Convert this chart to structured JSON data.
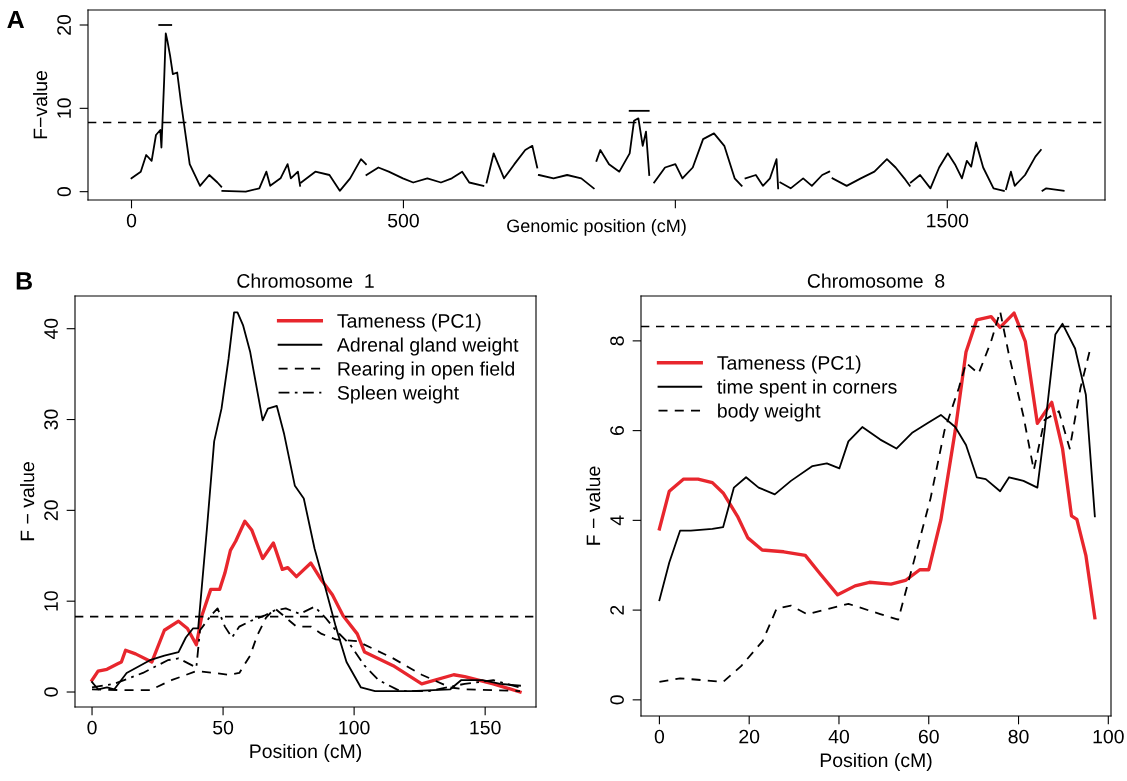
{
  "chart_data": [
    {
      "type": "line",
      "ylabel": "F−value",
      "xlabel": "Genomic position (cM)",
      "xlim": [
        -80,
        1790
      ],
      "ylim": [
        -1,
        21.8
      ],
      "xticks": [
        0,
        500,
        {
          "value": 1000,
          "label": null
        },
        1500
      ],
      "yticks": [
        0,
        10,
        20
      ],
      "legend": false,
      "annotations": [
        "A"
      ],
      "ref_lines": [
        {
          "axis": "y",
          "value": 8.3,
          "line_style": "dashed",
          "color": "#000000"
        }
      ],
      "series": [
        {
          "color": "#000000",
          "line_style": "solid",
          "x": [
            0,
            17,
            27,
            37,
            45,
            53,
            55,
            60,
            63,
            66,
            71,
            76,
            84,
            91,
            107,
            126,
            143,
            158,
            165,
            null,
            167,
            210,
            235,
            248,
            255,
            274,
            287,
            293,
            306,
            310,
            null,
            312,
            338,
            364,
            383,
            402,
            422,
            431,
            null,
            432,
            454,
            473,
            499,
            518,
            544,
            569,
            589,
            608,
            621,
            647,
            null,
            653,
            666,
            685,
            704,
            724,
            737,
            746,
            null,
            749,
            776,
            801,
            827,
            850,
            null,
            855,
            862,
            878,
            897,
            916,
            924,
            932,
            940,
            946,
            952,
            null,
            961,
            981,
            1000,
            1013,
            1032,
            1051,
            1071,
            1090,
            1109,
            1122,
            null,
            1129,
            1148,
            1161,
            1174,
            1186,
            1189,
            null,
            1193,
            1212,
            1235,
            1251,
            1270,
            1283,
            null,
            1289,
            1315,
            1341,
            1366,
            1389,
            1405,
            1421,
            1431,
            null,
            1433,
            1450,
            1469,
            1485,
            1501,
            1514,
            1527,
            1536,
            1544,
            1553,
            1566,
            1585,
            1604,
            null,
            1608,
            1617,
            1624,
            1643,
            1662,
            1672,
            null,
            1675,
            1682,
            1714
          ],
          "values": [
            1.6,
            2.4,
            4.4,
            3.7,
            6.8,
            7.4,
            5.3,
            13.3,
            19,
            18.1,
            16.3,
            14.1,
            14.3,
            10.7,
            3.3,
            0.7,
            2,
            1.1,
            0.6,
            null,
            0.1,
            0,
            0.4,
            2.4,
            0.7,
            1.6,
            3.3,
            1.6,
            2.4,
            0.7,
            null,
            1.1,
            2.4,
            2,
            0.1,
            1.6,
            3.9,
            3.3,
            null,
            2,
            2.9,
            2.4,
            1.6,
            1.1,
            1.6,
            1.1,
            1.6,
            2.4,
            1.1,
            0.7,
            null,
            1.1,
            4.6,
            1.6,
            3.3,
            5,
            5.5,
            2.9,
            null,
            2,
            1.6,
            2,
            1.6,
            0.4,
            null,
            3.7,
            5,
            3.3,
            2.4,
            4.6,
            8.5,
            8.8,
            5.5,
            7.2,
            2,
            null,
            1.1,
            2.9,
            3.3,
            1.6,
            2.9,
            6.3,
            7,
            5.5,
            1.6,
            0.7,
            null,
            1.6,
            2,
            0.7,
            1.6,
            3.9,
            0.4,
            null,
            1.1,
            0.4,
            1.6,
            0.7,
            2,
            2.4,
            null,
            1.6,
            0.7,
            1.6,
            2.4,
            3.9,
            2.9,
            1.6,
            0.7,
            null,
            1.1,
            2,
            0.4,
            2.9,
            4.6,
            3.3,
            1.6,
            3.7,
            3,
            5.9,
            2.9,
            0.4,
            0.1,
            null,
            0.3,
            2.4,
            0.7,
            2,
            4.2,
            5,
            null,
            0.1,
            0.4,
            0.1
          ]
        },
        {
          "color": "#000000",
          "line_style": "solid",
          "x": [
            51,
            73
          ],
          "values": [
            20,
            20
          ]
        },
        {
          "color": "#000000",
          "line_style": "solid",
          "x": [
            916,
            951
          ],
          "values": [
            9.7,
            9.7
          ]
        }
      ]
    },
    {
      "type": "line",
      "title": "Chromosome  1",
      "ylabel": "F − value",
      "xlabel": "Position (cM)",
      "xlim": [
        -6.5,
        169.4
      ],
      "ylim": [
        -1.65,
        43.6
      ],
      "xticks": [
        0,
        50,
        100,
        150
      ],
      "yticks": [
        0,
        10,
        20,
        30,
        40
      ],
      "legend": "top right",
      "annotations": [
        "B"
      ],
      "ref_lines": [
        {
          "axis": "y",
          "value": 8.3,
          "line_style": "dashed",
          "color": "#000000"
        }
      ],
      "series": [
        {
          "name": "Tameness (PC1)",
          "color": "#e8262d",
          "line_style": "solid",
          "x": [
            0,
            2.3,
            5.7,
            9.8,
            11.2,
            12.8,
            16.6,
            22.8,
            27.6,
            33,
            36.4,
            39.8,
            41.9,
            45.3,
            48.7,
            50.7,
            52.8,
            54.8,
            58.3,
            61,
            65.1,
            69.2,
            72.6,
            74.7,
            78,
            83.5,
            87.6,
            91.7,
            95.8,
            101.2,
            104,
            114.9,
            125.8,
            138,
            142.2,
            153.1,
            163.3
          ],
          "values": [
            1.3,
            2.3,
            2.5,
            3.1,
            3.3,
            4.6,
            4.2,
            3.3,
            6.8,
            7.8,
            7,
            5.2,
            8.4,
            11.3,
            11.3,
            13.1,
            15.6,
            16.6,
            18.8,
            17.8,
            14.7,
            16.4,
            13.5,
            13.7,
            12.7,
            14.2,
            12.3,
            10.7,
            8.4,
            6.4,
            4.4,
            2.9,
            0.9,
            1.9,
            1.7,
            0.9,
            0
          ]
        },
        {
          "name": "Adrenal gland weight",
          "color": "#000000",
          "line_style": "solid",
          "x": [
            0,
            2.3,
            5.7,
            8.5,
            13.2,
            22.1,
            27.6,
            33,
            35.8,
            38.5,
            40.5,
            43.9,
            46.6,
            49.4,
            52.1,
            54.2,
            55.5,
            57.6,
            60.3,
            65.1,
            67.1,
            70.5,
            73.3,
            77.4,
            80.8,
            84.9,
            89,
            93,
            97.1,
            102.6,
            108,
            121.7,
            136.7,
            140.8,
            149,
            155.8,
            163.3
          ],
          "values": [
            1.1,
            0.3,
            0.5,
            0.3,
            2.1,
            3.5,
            4,
            4.4,
            6,
            7,
            7,
            18.2,
            27.6,
            31.2,
            36.7,
            41.8,
            41.8,
            40.4,
            37.5,
            29.9,
            31.2,
            31.5,
            28.4,
            22.7,
            21.3,
            15.8,
            11.5,
            7.2,
            3.3,
            0.5,
            0.1,
            0.1,
            0.3,
            1.3,
            1.3,
            0.9,
            0.7
          ]
        },
        {
          "name": "Rearing in open field",
          "color": "#000000",
          "line_style": "dashed",
          "x": [
            0,
            12.6,
            22.1,
            30.3,
            39.8,
            46.7,
            51.9,
            56.2,
            60.3,
            63,
            66.4,
            69.8,
            73.9,
            78,
            83.5,
            87.6,
            93,
            101.2,
            114.9,
            125.8,
            136.7,
            142.2,
            163.3
          ],
          "values": [
            0.3,
            0.2,
            0.2,
            1.3,
            2.3,
            2.1,
            1.9,
            2.1,
            4,
            6.2,
            8.2,
            9.2,
            8.2,
            7.2,
            7.2,
            6.4,
            5.8,
            5.6,
            3.7,
            1.9,
            0.5,
            0.3,
            0.1
          ]
        },
        {
          "name": "Spleen weight",
          "color": "#000000",
          "line_style": "dashdot",
          "x": [
            0,
            8.5,
            19.4,
            28.9,
            33,
            39.8,
            41.2,
            45.3,
            47.9,
            50.7,
            53.4,
            56.2,
            60.3,
            65.7,
            69.8,
            73.9,
            79.3,
            84.9,
            89,
            93,
            98.5,
            104,
            109.4,
            117.6,
            128.5,
            142.2,
            153.1,
            163.3
          ],
          "values": [
            0.5,
            0.9,
            2.1,
            3.5,
            3.7,
            2.7,
            6.8,
            8.4,
            9.2,
            7.2,
            6,
            7.2,
            7.8,
            8.4,
            9,
            9.2,
            8.6,
            9.4,
            8.2,
            6.8,
            5.2,
            2.9,
            1.3,
            0.1,
            0.1,
            0.9,
            1.3,
            0.5
          ]
        }
      ]
    },
    {
      "type": "line",
      "title": "Chromosome  8",
      "ylabel": "F − value",
      "xlabel": "Position (cM)",
      "xlim": [
        -4.1,
        100.6
      ],
      "ylim": [
        -0.36,
        9.0
      ],
      "xticks": [
        0,
        20,
        40,
        60,
        80,
        100
      ],
      "yticks": [
        0,
        2,
        4,
        6,
        8
      ],
      "legend": "top left",
      "ref_lines": [
        {
          "axis": "y",
          "value": 8.32,
          "line_style": "dashed",
          "color": "#000000"
        }
      ],
      "series": [
        {
          "name": "Tameness (PC1)",
          "color": "#e8262d",
          "line_style": "solid",
          "x": [
            0,
            2.2,
            5.4,
            8.6,
            11.8,
            14.2,
            17.4,
            19.7,
            22.9,
            27.7,
            32.5,
            35.7,
            39.7,
            43.6,
            46.8,
            51.6,
            54.8,
            58,
            60,
            62.7,
            65.9,
            68.3,
            70.7,
            73.9,
            75.9,
            79,
            81.5,
            84.2,
            87.4,
            89.8,
            91.8,
            93,
            95,
            97
          ],
          "values": [
            3.81,
            4.65,
            4.92,
            4.92,
            4.84,
            4.61,
            4.09,
            3.61,
            3.34,
            3.3,
            3.22,
            2.82,
            2.34,
            2.54,
            2.62,
            2.58,
            2.66,
            2.9,
            2.9,
            4.01,
            6,
            7.75,
            8.47,
            8.54,
            8.3,
            8.62,
            7.99,
            6.16,
            6.63,
            5.6,
            4.1,
            4.02,
            3.22,
            1.83
          ]
        },
        {
          "name": "time spent in corners",
          "color": "#000000",
          "line_style": "solid",
          "x": [
            0,
            2.2,
            4.6,
            7,
            11.8,
            14.2,
            16.6,
            19.3,
            22.1,
            25.7,
            29.3,
            34.1,
            37.3,
            40.1,
            42.1,
            45.2,
            49.2,
            52.8,
            56.4,
            59.6,
            62.7,
            65.9,
            68.3,
            70.7,
            72.7,
            75.9,
            77.9,
            81.1,
            84.2,
            85.8,
            88.2,
            89.8,
            92.6,
            95,
            97
          ],
          "values": [
            2.22,
            3.06,
            3.77,
            3.77,
            3.81,
            3.85,
            4.73,
            4.96,
            4.73,
            4.58,
            4.88,
            5.21,
            5.27,
            5.16,
            5.76,
            6.08,
            5.8,
            5.6,
            5.96,
            6.16,
            6.35,
            6.08,
            5.68,
            4.96,
            4.92,
            4.65,
            4.96,
            4.88,
            4.73,
            6,
            8.14,
            8.38,
            7.83,
            6.8,
            4.09
          ]
        },
        {
          "name": "body weight",
          "color": "#000000",
          "line_style": "dashed",
          "x": [
            0,
            4.6,
            14.2,
            18.2,
            23,
            26.1,
            29.3,
            32.9,
            42.1,
            49.2,
            53.2,
            56.4,
            60.4,
            63.5,
            66.7,
            68.3,
            71.1,
            73.9,
            75.9,
            77.9,
            81.1,
            83.4,
            85.8,
            89,
            91.4,
            93.8,
            95.8
          ],
          "values": [
            0.4,
            0.48,
            0.4,
            0.75,
            1.31,
            2.03,
            2.1,
            1.91,
            2.14,
            1.91,
            1.79,
            2.98,
            4.49,
            6,
            6.95,
            7.51,
            7.27,
            7.99,
            8.66,
            7.67,
            6.32,
            5.12,
            6.24,
            6.43,
            5.6,
            6.95,
            7.75
          ]
        }
      ]
    }
  ]
}
